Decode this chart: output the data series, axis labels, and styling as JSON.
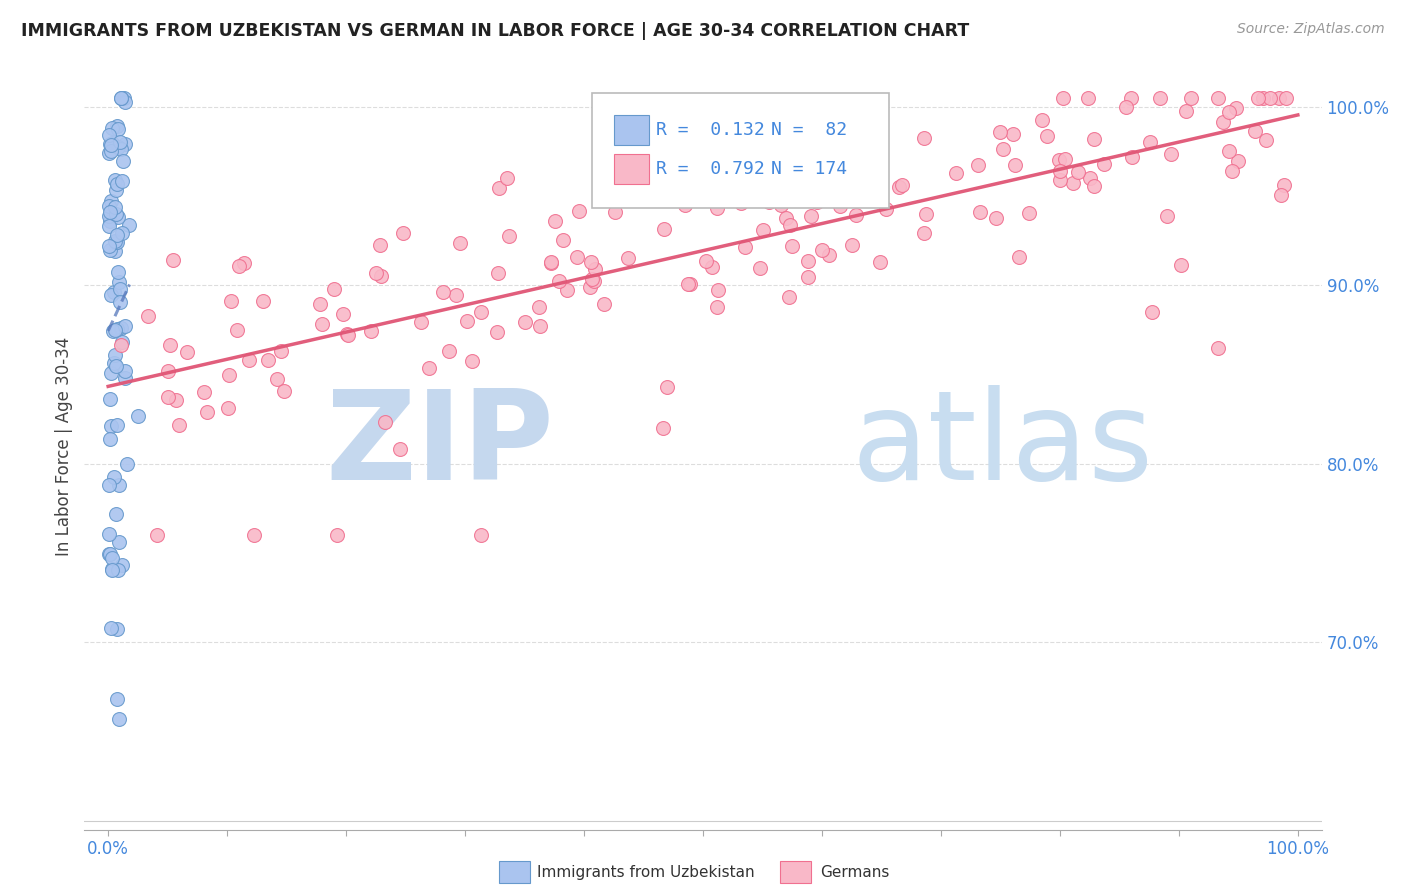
{
  "title": "IMMIGRANTS FROM UZBEKISTAN VS GERMAN IN LABOR FORCE | AGE 30-34 CORRELATION CHART",
  "source": "Source: ZipAtlas.com",
  "ylabel": "In Labor Force | Age 30-34",
  "color_uzbek": "#aac4ef",
  "color_german": "#f9b8c8",
  "edge_uzbek": "#6699cc",
  "edge_german": "#f07090",
  "trendline_uzbek": "#5577bb",
  "trendline_german": "#e05575",
  "watermark_zip_color": "#c5d8ee",
  "watermark_atlas_color": "#c8ddf0",
  "legend_r1": "R =  0.132",
  "legend_n1": "N =  82",
  "legend_r2": "R =  0.792",
  "legend_n2": "N = 174",
  "legend_label1": "Immigrants from Uzbekistan",
  "legend_label2": "Germans",
  "axis_label_color": "#4488dd",
  "ylabel_color": "#444444",
  "title_color": "#222222",
  "source_color": "#999999",
  "grid_color": "#dddddd",
  "xlim": [
    -0.02,
    1.02
  ],
  "ylim": [
    0.595,
    1.025
  ],
  "y_ticks": [
    0.7,
    0.8,
    0.9,
    1.0
  ],
  "y_tick_labels": [
    "70.0%",
    "80.0%",
    "90.0%",
    "100.0%"
  ],
  "x_ticks": [
    0.0,
    0.1,
    0.2,
    0.3,
    0.4,
    0.5,
    0.6,
    0.7,
    0.8,
    0.9,
    1.0
  ],
  "x_tick_labels": [
    "0.0%",
    "",
    "",
    "",
    "",
    "",
    "",
    "",
    "",
    "",
    "100.0%"
  ]
}
